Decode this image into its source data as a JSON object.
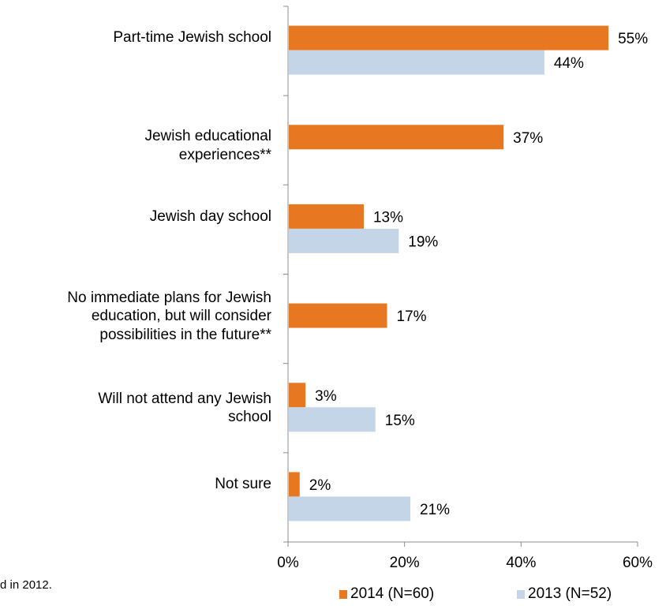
{
  "chart_data": {
    "type": "bar",
    "orientation": "horizontal",
    "categories": [
      "Part-time Jewish school",
      "Jewish educational experiences**",
      "Jewish day school",
      "No immediate plans for Jewish education, but will consider possibilities in the future**",
      "Will not attend any Jewish school",
      "Not sure"
    ],
    "category_lines": [
      [
        "Part-time Jewish school"
      ],
      [
        "Jewish educational",
        "experiences**"
      ],
      [
        "Jewish day school"
      ],
      [
        "No immediate plans for Jewish",
        "education, but will consider",
        "possibilities in the future**"
      ],
      [
        "Will not attend any Jewish",
        "school"
      ],
      [
        "Not sure"
      ]
    ],
    "series": [
      {
        "name": "2014 (N=60)",
        "color": "#E87722",
        "values": [
          55,
          37,
          13,
          17,
          3,
          2
        ],
        "labels": [
          "55%",
          "37%",
          "13%",
          "17%",
          "3%",
          "2%"
        ]
      },
      {
        "name": "2013 (N=52)",
        "color": "#C5D5E8",
        "values": [
          44,
          null,
          19,
          null,
          15,
          21
        ],
        "labels": [
          "44%",
          null,
          "19%",
          null,
          "15%",
          "21%"
        ]
      }
    ],
    "xlim": [
      0,
      60
    ],
    "xticks": [
      "0%",
      "20%",
      "40%",
      "60%"
    ],
    "xlabel": "",
    "ylabel": "",
    "legend_position": "bottom",
    "grid": false,
    "footnote": "d in 2012."
  }
}
